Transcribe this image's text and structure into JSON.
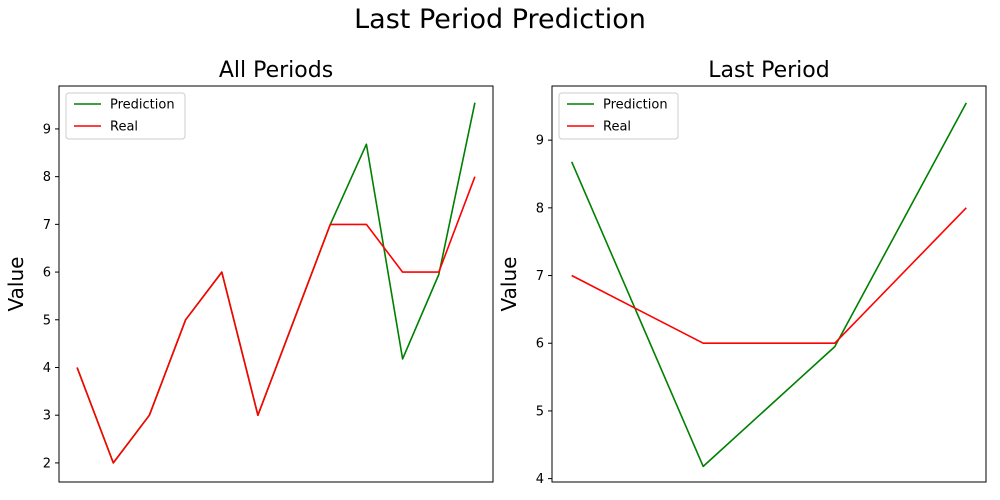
{
  "figure": {
    "title": "Last Period Prediction"
  },
  "colors": {
    "prediction": "#008000",
    "real": "#ff0000"
  },
  "chart_data": [
    {
      "type": "line",
      "title": "All Periods",
      "xlabel": "",
      "ylabel": "Value",
      "x": [
        0,
        1,
        2,
        3,
        4,
        5,
        6,
        7,
        8,
        9,
        10,
        11
      ],
      "xticks": [],
      "yticks": [
        2,
        3,
        4,
        5,
        6,
        7,
        8,
        9
      ],
      "ylim": [
        1.6,
        9.9
      ],
      "xlim": [
        -0.5,
        11.5
      ],
      "grid": false,
      "legend": "top-left",
      "series": [
        {
          "name": "Prediction",
          "color": "#008000",
          "values": [
            4,
            2,
            3,
            5,
            6,
            3,
            5,
            7,
            8.68,
            4.18,
            5.95,
            9.55
          ]
        },
        {
          "name": "Real",
          "color": "#ff0000",
          "values": [
            4,
            2,
            3,
            5,
            6,
            3,
            5,
            7,
            7,
            6,
            6,
            8
          ]
        }
      ]
    },
    {
      "type": "line",
      "title": "Last Period",
      "xlabel": "",
      "ylabel": "Value",
      "x": [
        0,
        1,
        2,
        3
      ],
      "xticks": [],
      "yticks": [
        4,
        5,
        6,
        7,
        8,
        9
      ],
      "ylim": [
        3.95,
        9.8
      ],
      "xlim": [
        -0.15,
        3.15
      ],
      "grid": false,
      "legend": "top-left",
      "series": [
        {
          "name": "Prediction",
          "color": "#008000",
          "values": [
            8.68,
            4.18,
            5.95,
            9.55
          ]
        },
        {
          "name": "Real",
          "color": "#ff0000",
          "values": [
            7,
            6,
            6,
            8
          ]
        }
      ]
    }
  ]
}
